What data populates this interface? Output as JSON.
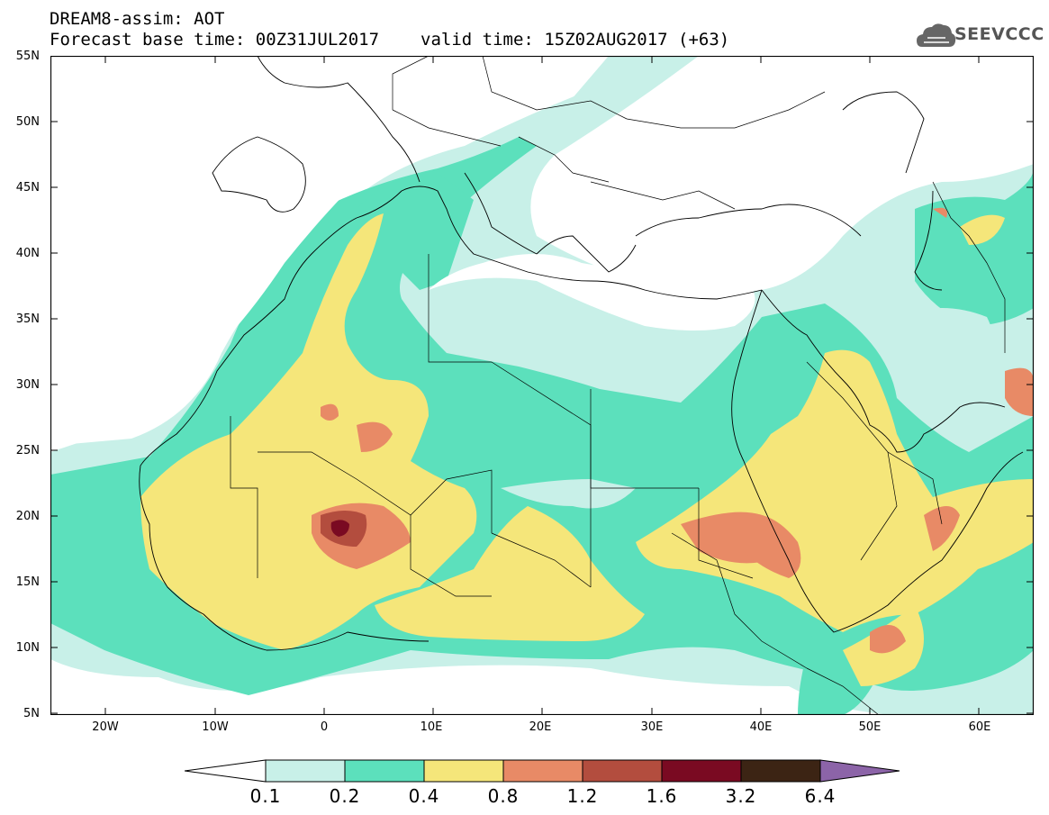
{
  "header": {
    "title_line1": "DREAM8-assim: AOT",
    "forecast_base": "Forecast base time: 00Z31JUL2017",
    "valid_time": "valid time: 15Z02AUG2017 (+63)"
  },
  "logo": {
    "text": "SEEVCCC",
    "icon": "cloud-icon"
  },
  "map": {
    "lat_labels": [
      "55N",
      "50N",
      "45N",
      "40N",
      "35N",
      "30N",
      "25N",
      "20N",
      "15N",
      "10N",
      "5N"
    ],
    "lon_labels": [
      "20W",
      "10W",
      "0",
      "10E",
      "20E",
      "30E",
      "40E",
      "50E",
      "60E"
    ]
  },
  "colorbar": {
    "labels": [
      "0.1",
      "0.2",
      "0.4",
      "0.8",
      "1.2",
      "1.6",
      "3.2",
      "6.4"
    ],
    "colors": {
      "lt01": "#ffffff",
      "b01_02": "#c8f0e8",
      "b02_04": "#5ce0bc",
      "b04_08": "#f5e67a",
      "b08_12": "#e88a66",
      "b12_16": "#b34d3e",
      "b16_32": "#7a0a22",
      "b32_64": "#3c2414",
      "gt64": "#8c64a8"
    }
  }
}
